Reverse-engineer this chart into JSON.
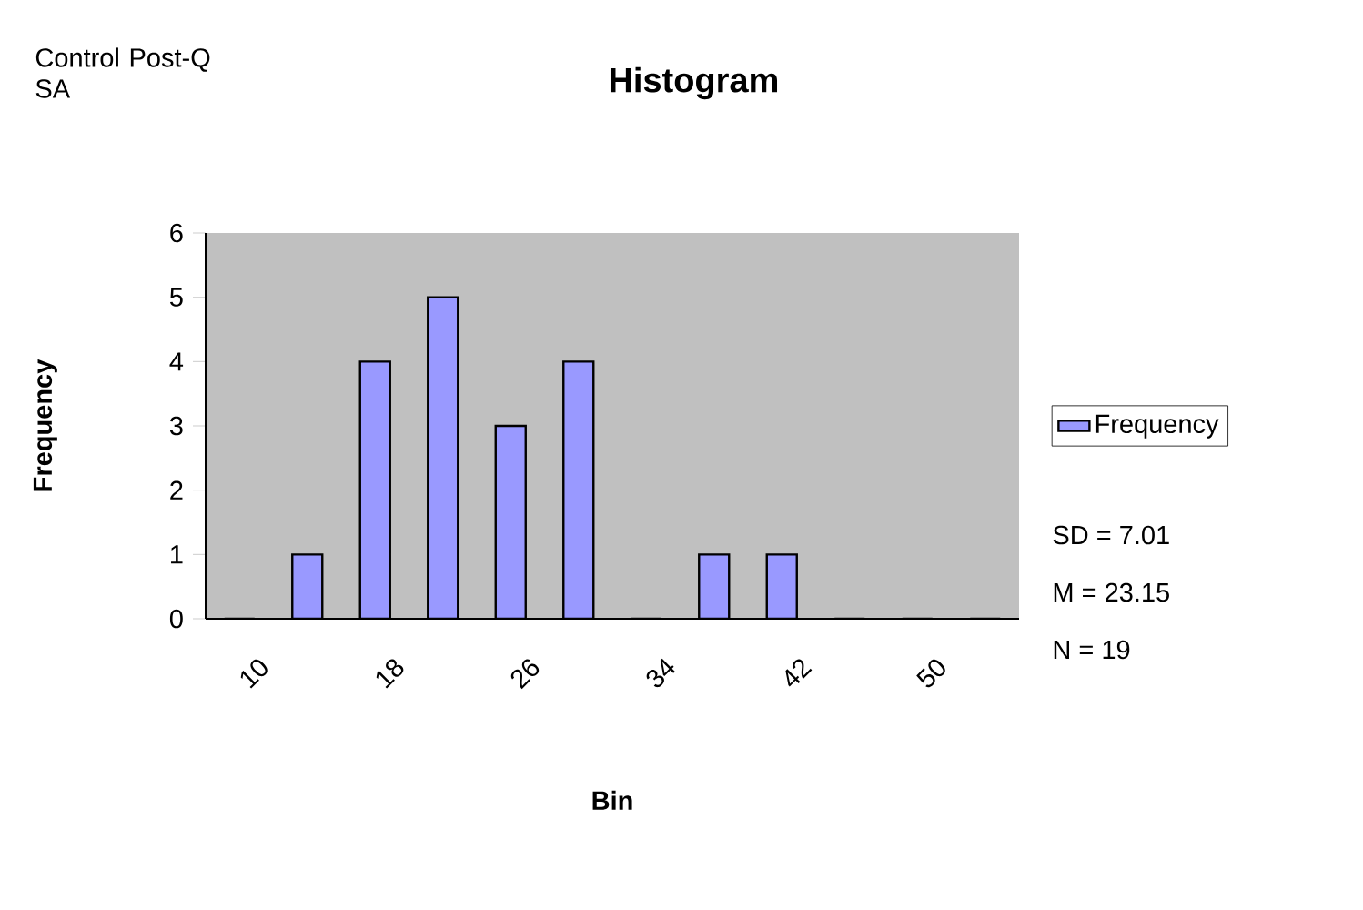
{
  "chart_data": {
    "type": "bar",
    "title": "Histogram",
    "xlabel": "Bin",
    "ylabel": "Frequency",
    "categories": [
      "10",
      null,
      "18",
      null,
      "26",
      null,
      "34",
      null,
      "42",
      null,
      "50",
      null
    ],
    "series": [
      {
        "name": "Frequency",
        "color": "#9999ff",
        "values": [
          0,
          1,
          4,
          5,
          3,
          4,
          0,
          1,
          1,
          0,
          0,
          0
        ]
      }
    ],
    "ylim": [
      0,
      6
    ],
    "yticks": [
      0,
      1,
      2,
      3,
      4,
      5,
      6
    ],
    "grid": false,
    "legend": "right",
    "annotations": [
      "Control Post-Q SA",
      "SD = 7.01",
      "M = 23.15",
      "N = 19"
    ]
  }
}
